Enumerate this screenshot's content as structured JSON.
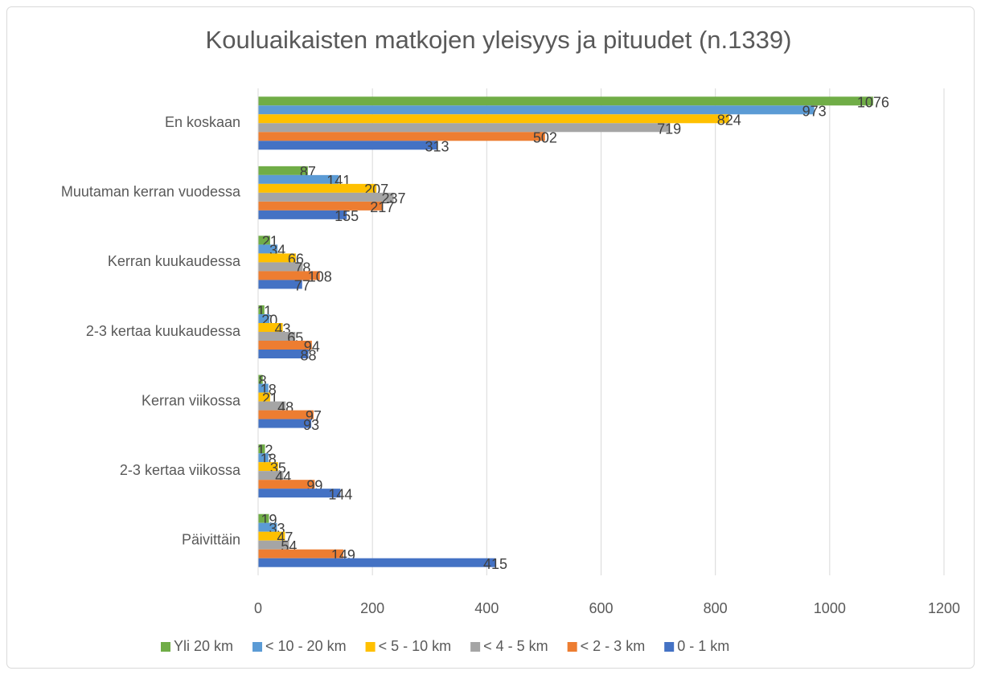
{
  "chart_data": {
    "type": "bar",
    "orientation": "horizontal",
    "title": "Kouluaikaisten matkojen yleisyys ja pituudet (n.1339)",
    "categories": [
      "En koskaan",
      "Muutaman kerran vuodessa",
      "Kerran kuukaudessa",
      "2-3 kertaa kuukaudessa",
      "Kerran viikossa",
      "2-3 kertaa viikossa",
      "Päivittäin"
    ],
    "series": [
      {
        "name": "Yli 20 km",
        "color": "#70ad47",
        "values": [
          1076,
          87,
          21,
          11,
          8,
          12,
          19
        ]
      },
      {
        "name": "< 10 - 20 km",
        "color": "#5b9bd5",
        "values": [
          973,
          141,
          34,
          20,
          18,
          18,
          33
        ]
      },
      {
        "name": "< 5 - 10 km",
        "color": "#ffc000",
        "values": [
          824,
          207,
          66,
          43,
          21,
          35,
          47
        ]
      },
      {
        "name": "< 4 - 5 km",
        "color": "#a5a5a5",
        "values": [
          719,
          237,
          78,
          65,
          48,
          44,
          54
        ]
      },
      {
        "name": "< 2 - 3 km",
        "color": "#ed7d31",
        "values": [
          502,
          217,
          108,
          94,
          97,
          99,
          149
        ]
      },
      {
        "name": "0 - 1 km",
        "color": "#4472c4",
        "values": [
          313,
          155,
          77,
          88,
          93,
          144,
          415
        ]
      }
    ],
    "xlim": [
      0,
      1200
    ],
    "xticks": [
      0,
      200,
      400,
      600,
      800,
      1000,
      1200
    ],
    "grid": true,
    "legend": "bottom",
    "data_labels": true
  }
}
